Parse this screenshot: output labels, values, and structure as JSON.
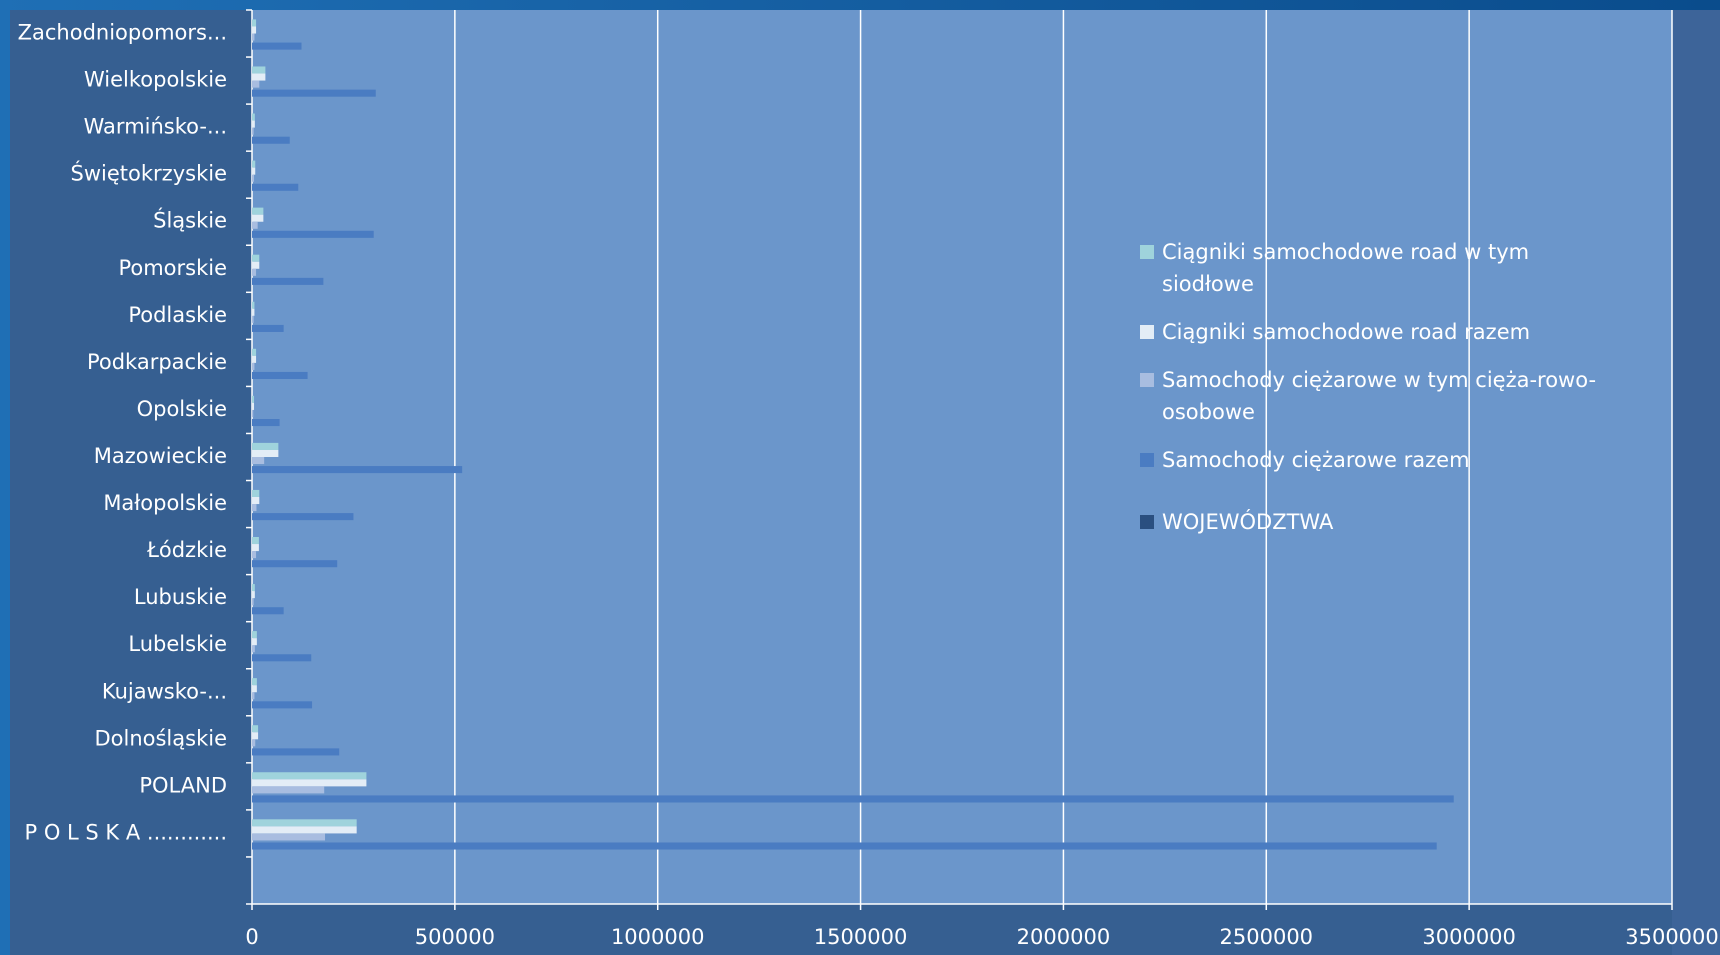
{
  "chart_data": {
    "type": "bar",
    "orientation": "horizontal",
    "categories": [
      null,
      "P O L S K A ............",
      "POLAND",
      "Dolnośląskie",
      "Kujawsko-...",
      "Lubelskie",
      "Lubuskie",
      "Łódzkie",
      "Małopolskie",
      "Mazowieckie",
      "Opolskie",
      "Podkarpackie",
      "Podlaskie",
      "Pomorskie",
      "Śląskie",
      "Świętokrzyskie",
      "Warmińsko-...",
      "Wielkopolskie",
      "Zachodniopomors..."
    ],
    "series": [
      {
        "name": "Ciągniki samochodowe road w tym siodłowe",
        "color": "#9fd3dc",
        "values": [
          null,
          258000,
          282000,
          15000,
          12000,
          12000,
          7000,
          17000,
          18000,
          65000,
          5000,
          10000,
          6000,
          18000,
          28000,
          8000,
          7000,
          33000,
          10000
        ]
      },
      {
        "name": "Ciągniki samochodowe road razem",
        "color": "#e3edf6",
        "values": [
          null,
          258000,
          282000,
          15000,
          12000,
          12000,
          7000,
          17000,
          18000,
          65000,
          5000,
          10000,
          6000,
          18000,
          28000,
          8000,
          7000,
          33000,
          10000
        ]
      },
      {
        "name": "Samochody ciężarowe w tym cięża-rowo-osobowe",
        "color": "#a8bde0",
        "values": [
          null,
          180000,
          178000,
          8000,
          6000,
          7000,
          4000,
          10000,
          11000,
          30000,
          3000,
          6000,
          4000,
          10000,
          14000,
          5000,
          4000,
          18000,
          6000
        ]
      },
      {
        "name": "Samochody ciężarowe razem",
        "color": "#4a7cc2",
        "values": [
          null,
          2920000,
          2962000,
          215000,
          148000,
          146000,
          78000,
          210000,
          250000,
          518000,
          68000,
          137000,
          78000,
          176000,
          300000,
          114000,
          93000,
          305000,
          122000
        ]
      },
      {
        "name": "WOJEWÓDZTWA",
        "color": "#2a4f80",
        "values": [
          null,
          null,
          null,
          null,
          null,
          null,
          null,
          null,
          null,
          null,
          null,
          null,
          null,
          null,
          null,
          null,
          null,
          null,
          null
        ]
      }
    ],
    "xlim": [
      0,
      3500000
    ],
    "xticks": [
      0,
      500000,
      1000000,
      1500000,
      2000000,
      2500000,
      3000000,
      3500000
    ],
    "grid": true,
    "legend": "right"
  }
}
